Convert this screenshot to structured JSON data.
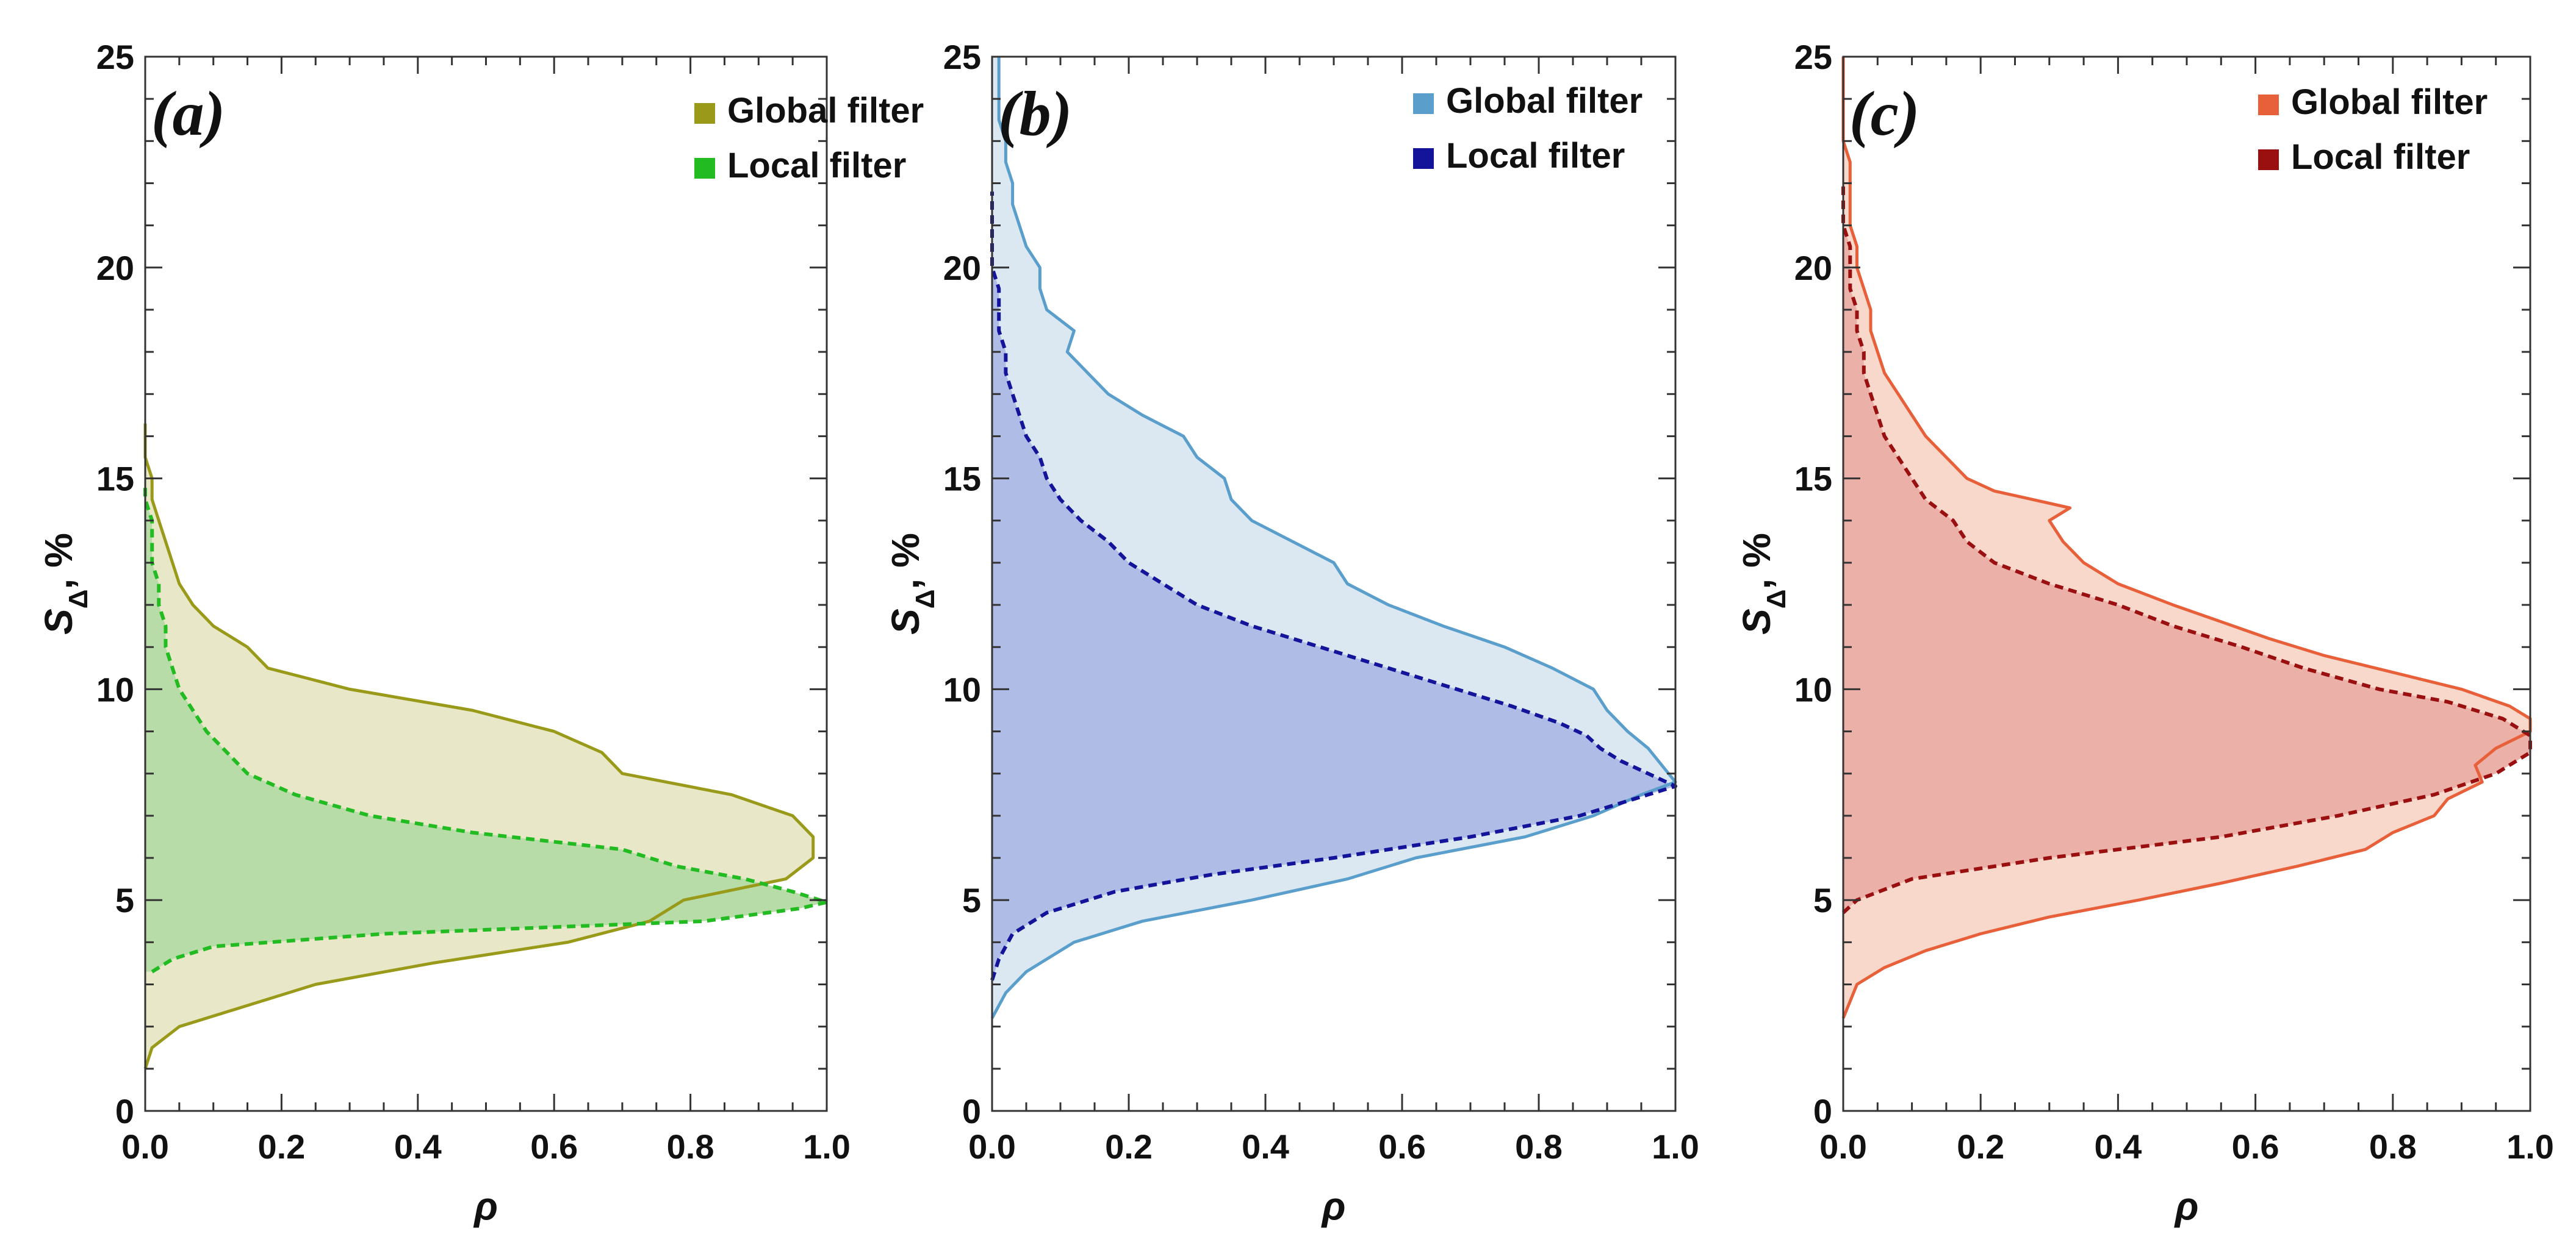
{
  "chart_data": [
    {
      "type": "area",
      "panel_label": "(a)",
      "xlabel": "ρ",
      "ylabel": "S",
      "ylabel_sub": "Δ",
      "ylabel_suffix": ", %",
      "xlim": [
        0,
        1
      ],
      "ylim": [
        0,
        25
      ],
      "xticks": [
        "0.0",
        "0.2",
        "0.4",
        "0.6",
        "0.8",
        "1.0"
      ],
      "yticks": [
        "0",
        "5",
        "10",
        "15",
        "20",
        "25"
      ],
      "legend_position": "top-right",
      "series": [
        {
          "name": "Global filter",
          "color": "#9a9a1a",
          "fill": "#e8e8c8",
          "style": "solid",
          "y": [
            1.0,
            1.5,
            2.0,
            2.5,
            3.0,
            3.5,
            4.0,
            4.5,
            5.0,
            5.5,
            6.0,
            6.5,
            7.0,
            7.5,
            8.0,
            8.5,
            9.0,
            9.5,
            10.0,
            10.5,
            11.0,
            11.5,
            12.0,
            12.5,
            13.0,
            13.5,
            14.0,
            14.5,
            15.0,
            15.5,
            16.0,
            16.3
          ],
          "x": [
            0.0,
            0.01,
            0.05,
            0.15,
            0.25,
            0.42,
            0.62,
            0.74,
            0.79,
            0.94,
            0.98,
            0.98,
            0.95,
            0.86,
            0.7,
            0.67,
            0.6,
            0.48,
            0.3,
            0.18,
            0.15,
            0.1,
            0.07,
            0.05,
            0.04,
            0.03,
            0.02,
            0.01,
            0.01,
            0.0,
            0.0,
            0.0
          ]
        },
        {
          "name": "Local filter",
          "color": "#22bb22",
          "fill": "#b8dca8",
          "style": "dashed",
          "y": [
            3.3,
            3.6,
            3.9,
            4.2,
            4.5,
            4.8,
            4.95,
            5.2,
            5.5,
            5.8,
            6.2,
            6.6,
            7.0,
            7.5,
            8.0,
            8.5,
            9.0,
            9.5,
            10.0,
            10.5,
            11.0,
            11.5,
            12.0,
            12.5,
            13.0,
            13.5,
            14.0,
            14.5,
            14.9
          ],
          "x": [
            0.01,
            0.04,
            0.1,
            0.35,
            0.82,
            0.96,
            1.0,
            0.95,
            0.88,
            0.78,
            0.7,
            0.48,
            0.33,
            0.22,
            0.15,
            0.12,
            0.09,
            0.07,
            0.05,
            0.04,
            0.03,
            0.03,
            0.02,
            0.02,
            0.01,
            0.01,
            0.01,
            0.0,
            0.0
          ]
        }
      ]
    },
    {
      "type": "area",
      "panel_label": "(b)",
      "xlabel": "ρ",
      "ylabel": "S",
      "ylabel_sub": "Δ",
      "ylabel_suffix": ", %",
      "xlim": [
        0,
        1
      ],
      "ylim": [
        0,
        25
      ],
      "xticks": [
        "0.0",
        "0.2",
        "0.4",
        "0.6",
        "0.8",
        "1.0"
      ],
      "yticks": [
        "0",
        "5",
        "10",
        "15",
        "20",
        "25"
      ],
      "legend_position": "top-right",
      "series": [
        {
          "name": "Global filter",
          "color": "#5a9ecb",
          "fill": "#dbe8f2",
          "style": "solid",
          "y": [
            2.2,
            2.8,
            3.3,
            4.0,
            4.5,
            5.0,
            5.5,
            6.0,
            6.5,
            7.0,
            7.5,
            7.8,
            8.2,
            8.6,
            9.0,
            9.5,
            10.0,
            10.5,
            11.0,
            11.5,
            12.0,
            12.5,
            13.0,
            13.5,
            14.0,
            14.5,
            15.0,
            15.5,
            16.0,
            16.5,
            17.0,
            17.5,
            18.0,
            18.5,
            19.0,
            19.5,
            20.0,
            20.5,
            21.0,
            21.5,
            22.0,
            22.5,
            23.0,
            23.5,
            24.0,
            24.5,
            25.0
          ],
          "x": [
            0.0,
            0.02,
            0.05,
            0.12,
            0.22,
            0.38,
            0.52,
            0.62,
            0.78,
            0.88,
            0.95,
            1.0,
            0.98,
            0.96,
            0.93,
            0.9,
            0.88,
            0.82,
            0.75,
            0.66,
            0.58,
            0.52,
            0.5,
            0.44,
            0.38,
            0.35,
            0.34,
            0.3,
            0.28,
            0.22,
            0.17,
            0.14,
            0.11,
            0.12,
            0.08,
            0.07,
            0.07,
            0.05,
            0.04,
            0.03,
            0.03,
            0.02,
            0.02,
            0.01,
            0.01,
            0.01,
            0.01
          ]
        },
        {
          "name": "Local filter",
          "color": "#14149a",
          "fill": "#aebce6",
          "style": "dashed",
          "y": [
            3.1,
            3.6,
            4.2,
            4.7,
            5.2,
            5.6,
            6.0,
            6.5,
            7.0,
            7.5,
            7.7,
            8.0,
            8.3,
            8.6,
            8.9,
            9.2,
            9.6,
            10.0,
            10.5,
            11.0,
            11.5,
            12.0,
            12.5,
            13.0,
            13.5,
            14.0,
            14.5,
            15.0,
            15.5,
            16.0,
            16.5,
            17.0,
            17.5,
            18.0,
            18.5,
            19.0,
            19.5,
            20.0,
            20.5,
            21.0,
            21.5,
            21.8
          ],
          "x": [
            0.0,
            0.01,
            0.03,
            0.08,
            0.18,
            0.32,
            0.5,
            0.7,
            0.86,
            0.96,
            1.0,
            0.96,
            0.92,
            0.89,
            0.87,
            0.83,
            0.76,
            0.68,
            0.58,
            0.48,
            0.38,
            0.3,
            0.25,
            0.2,
            0.17,
            0.13,
            0.1,
            0.08,
            0.07,
            0.05,
            0.04,
            0.03,
            0.02,
            0.02,
            0.01,
            0.01,
            0.01,
            0.0,
            0.0,
            0.0,
            0.0,
            0.0
          ]
        }
      ]
    },
    {
      "type": "area",
      "panel_label": "(c)",
      "xlabel": "ρ",
      "ylabel": "S",
      "ylabel_sub": "Δ",
      "ylabel_suffix": ", %",
      "xlim": [
        0,
        1
      ],
      "ylim": [
        0,
        25
      ],
      "xticks": [
        "0.0",
        "0.2",
        "0.4",
        "0.6",
        "0.8",
        "1.0"
      ],
      "yticks": [
        "0",
        "5",
        "10",
        "15",
        "20",
        "25"
      ],
      "legend_position": "top-right",
      "series": [
        {
          "name": "Global filter",
          "color": "#e8603a",
          "fill": "#f9d8cc",
          "style": "solid",
          "y": [
            2.2,
            2.6,
            3.0,
            3.4,
            3.8,
            4.2,
            4.6,
            5.0,
            5.4,
            5.8,
            6.2,
            6.6,
            7.0,
            7.4,
            7.8,
            8.2,
            8.6,
            9.0,
            9.3,
            9.6,
            10.0,
            10.4,
            10.8,
            11.2,
            11.6,
            12.0,
            12.5,
            13.0,
            13.5,
            14.0,
            14.3,
            14.7,
            15.0,
            15.5,
            16.0,
            16.5,
            17.0,
            17.5,
            18.0,
            18.5,
            19.0,
            19.5,
            20.0,
            20.5,
            21.0,
            21.5,
            22.0,
            22.5,
            23.0,
            23.5,
            24.0,
            24.5,
            25.0
          ],
          "x": [
            0.0,
            0.01,
            0.02,
            0.06,
            0.12,
            0.2,
            0.3,
            0.43,
            0.55,
            0.66,
            0.76,
            0.8,
            0.86,
            0.88,
            0.93,
            0.92,
            0.95,
            1.0,
            1.0,
            0.97,
            0.9,
            0.8,
            0.7,
            0.62,
            0.55,
            0.48,
            0.4,
            0.35,
            0.32,
            0.3,
            0.33,
            0.22,
            0.18,
            0.15,
            0.12,
            0.1,
            0.08,
            0.06,
            0.05,
            0.04,
            0.04,
            0.03,
            0.02,
            0.02,
            0.01,
            0.01,
            0.01,
            0.01,
            0.0,
            0.0,
            0.0,
            0.0,
            0.0
          ]
        },
        {
          "name": "Local filter",
          "color": "#9a1010",
          "fill": "#ebb0a8",
          "style": "dashed",
          "y": [
            4.7,
            5.0,
            5.5,
            6.0,
            6.5,
            7.0,
            7.5,
            8.0,
            8.5,
            8.9,
            9.3,
            9.7,
            10.0,
            10.5,
            11.0,
            11.5,
            12.0,
            12.5,
            13.0,
            13.5,
            14.0,
            14.5,
            15.0,
            15.5,
            16.0,
            16.5,
            17.0,
            17.5,
            18.0,
            18.5,
            19.0,
            19.5,
            20.0,
            20.5,
            21.0,
            21.5,
            22.0
          ],
          "x": [
            0.0,
            0.02,
            0.1,
            0.3,
            0.55,
            0.72,
            0.86,
            0.95,
            1.0,
            1.0,
            0.96,
            0.88,
            0.78,
            0.67,
            0.58,
            0.48,
            0.4,
            0.3,
            0.22,
            0.18,
            0.16,
            0.12,
            0.1,
            0.08,
            0.06,
            0.05,
            0.04,
            0.03,
            0.03,
            0.02,
            0.02,
            0.01,
            0.01,
            0.01,
            0.0,
            0.0,
            0.0
          ]
        }
      ]
    }
  ]
}
